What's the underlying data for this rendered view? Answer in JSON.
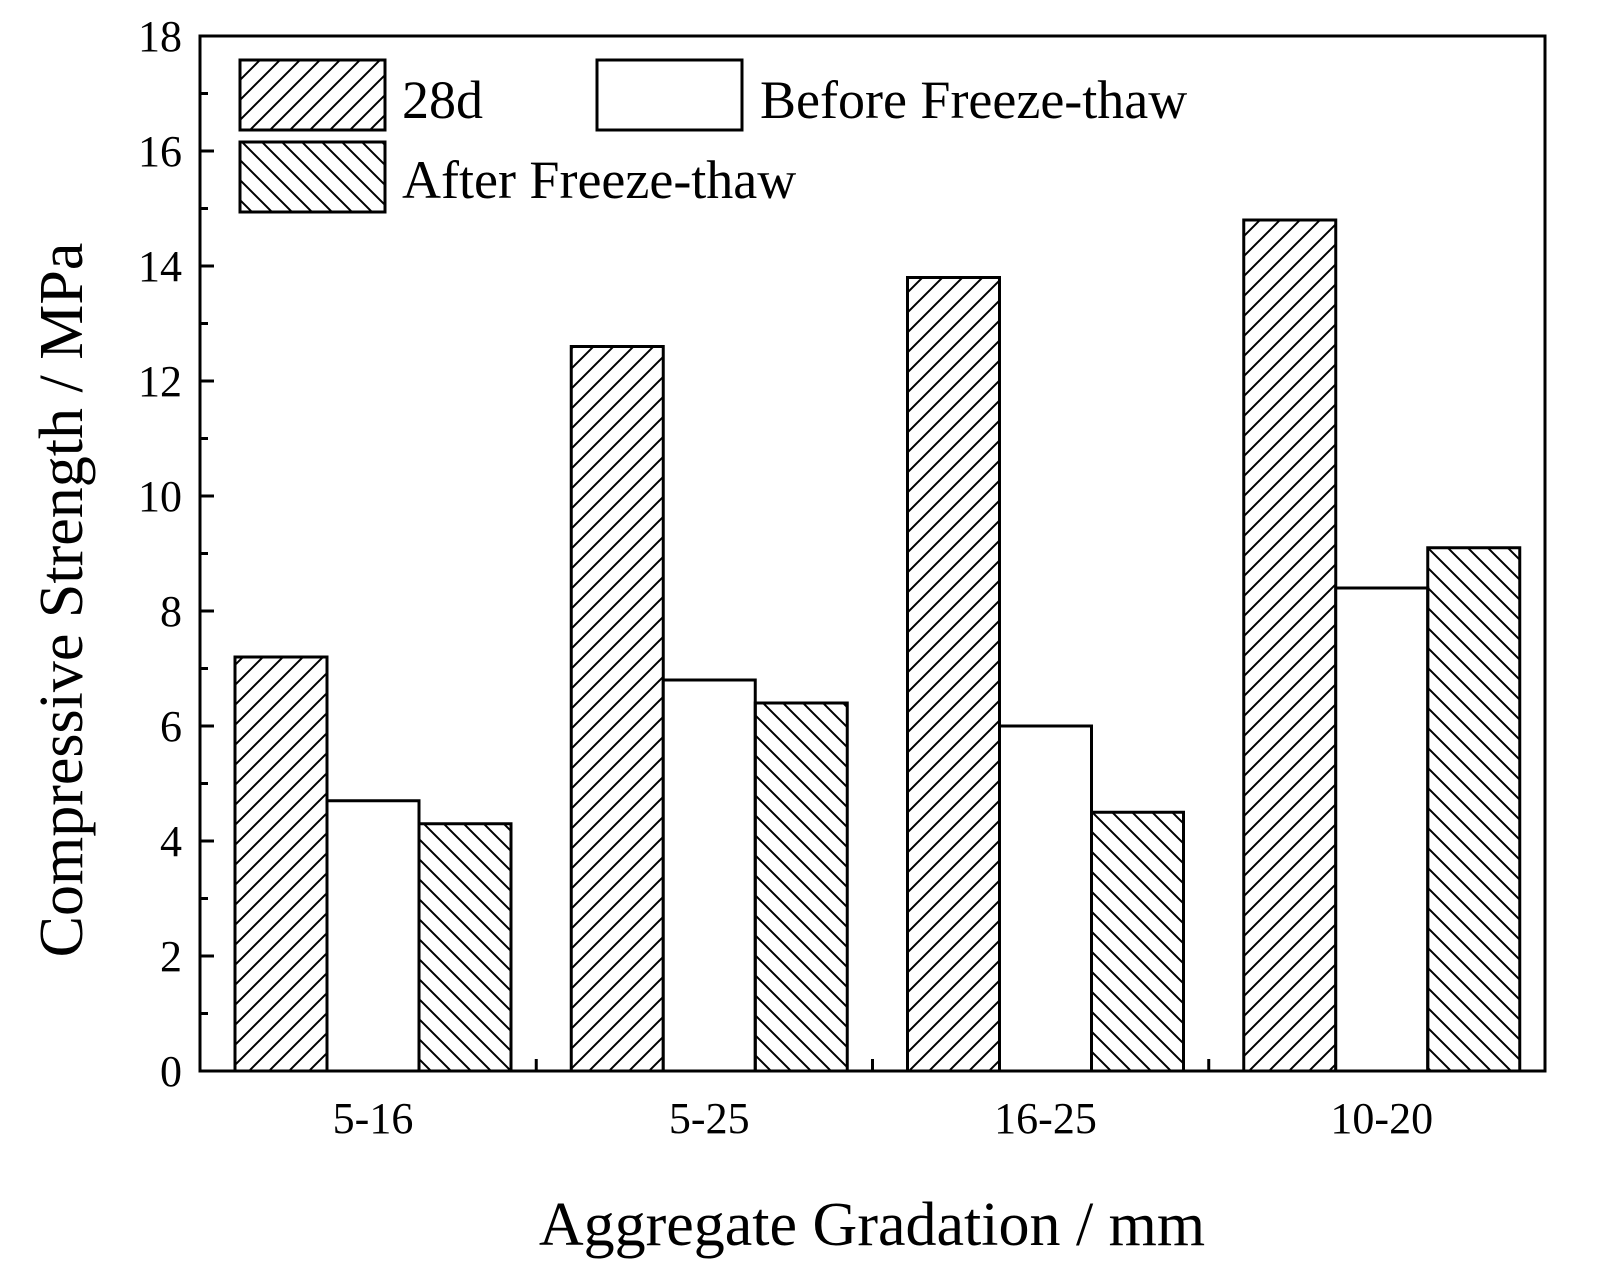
{
  "chart_data": {
    "type": "bar",
    "title": "",
    "xlabel": "Aggregate Gradation / mm",
    "ylabel": "Compressive Strength / MPa",
    "ylim": [
      0,
      18
    ],
    "yticks": [
      0,
      2,
      4,
      6,
      8,
      10,
      12,
      14,
      16,
      18
    ],
    "categories": [
      "5-16",
      "5-25",
      "16-25",
      "10-20"
    ],
    "series": [
      {
        "name": "28d",
        "pattern": "hatch-forward",
        "values": [
          7.2,
          12.6,
          13.8,
          14.8
        ]
      },
      {
        "name": "Before Freeze-thaw",
        "pattern": "plain",
        "values": [
          4.7,
          6.8,
          6.0,
          8.4
        ]
      },
      {
        "name": "After Freeze-thaw",
        "pattern": "hatch-backward",
        "values": [
          4.3,
          6.4,
          4.5,
          9.1
        ]
      }
    ],
    "legend_position": "top-left",
    "grid": false,
    "colors": {
      "stroke": "#000000",
      "fill": "#ffffff"
    }
  }
}
